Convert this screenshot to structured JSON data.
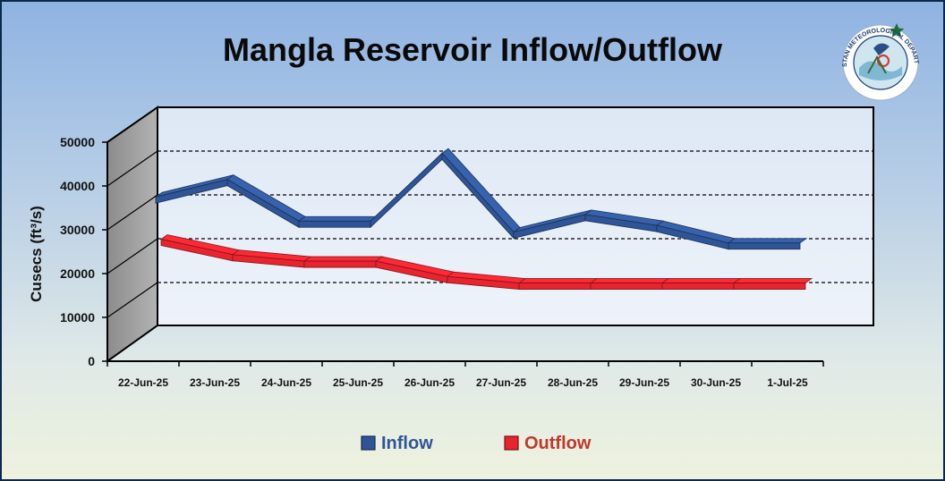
{
  "chart_data": {
    "type": "line",
    "title": "Mangla Reservoir Inflow/Outflow",
    "ylabel": "Cusecs (ft³/s)",
    "xlabel": "",
    "categories": [
      "22-Jun-25",
      "23-Jun-25",
      "24-Jun-25",
      "25-Jun-25",
      "26-Jun-25",
      "27-Jun-25",
      "28-Jun-25",
      "29-Jun-25",
      "30-Jun-25",
      "1-Jul-25"
    ],
    "ylim": [
      0,
      50000
    ],
    "yticks": [
      "0",
      "10000",
      "20000",
      "30000",
      "40000",
      "50000"
    ],
    "grid": "dashed horizontal",
    "legend_position": "bottom",
    "style": "3d",
    "series": [
      {
        "name": "Inflow",
        "color": "#2f5597",
        "values": [
          35500,
          39500,
          30000,
          30000,
          45500,
          27500,
          31500,
          29000,
          25000,
          25000
        ]
      },
      {
        "name": "Outflow",
        "color": "#e8242e",
        "values": [
          25000,
          21500,
          20000,
          20000,
          16500,
          15000,
          15000,
          15000,
          15000,
          15000
        ]
      }
    ]
  },
  "logo": {
    "text_top": "PAKISTAN METEOROLOGICAL DEPARTMENT",
    "icon": "pmd-emblem-icon"
  },
  "colors": {
    "frame_border": "#0b2a4a",
    "wall_back": "#e4edf7",
    "wall_side": "#a6a6a6",
    "inflow": "#2f5597",
    "outflow": "#e8242e"
  }
}
